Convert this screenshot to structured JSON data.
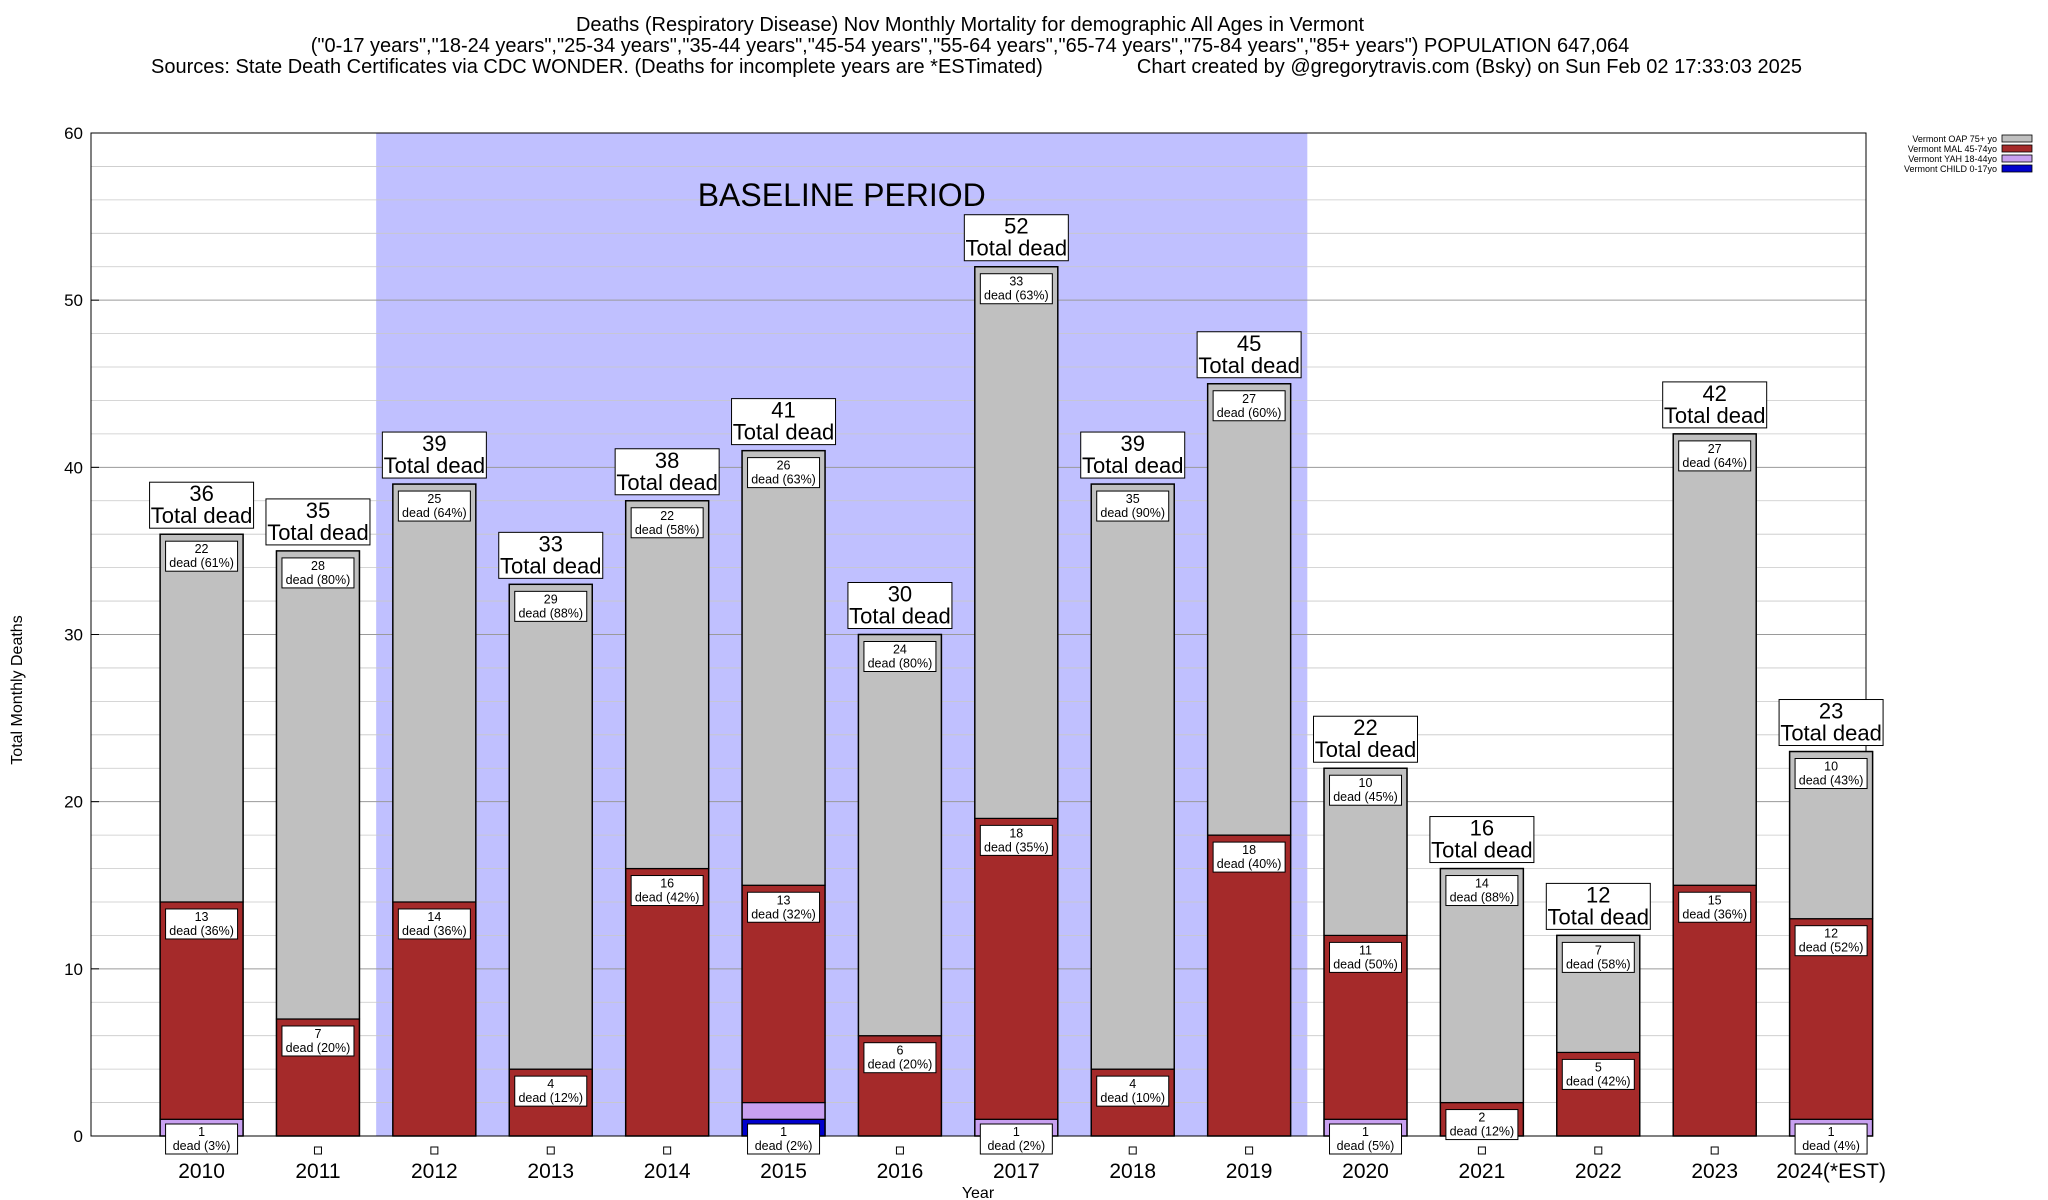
{
  "header": {
    "title_line1": "Deaths (Respiratory Disease) Nov Monthly Mortality for demographic All Ages in Vermont",
    "title_line2": "(\"0-17 years\",\"18-24 years\",\"25-34 years\",\"35-44 years\",\"45-54 years\",\"55-64 years\",\"65-74 years\",\"75-84 years\",\"85+ years\") POPULATION 647,064",
    "title_line3_left": "Sources: State Death Certificates via CDC WONDER. (Deaths for incomplete years are *ESTimated)",
    "title_line3_right": "Chart created by @gregorytravis.com (Bsky) on Sun Feb 02 17:33:03 2025"
  },
  "chart_data": {
    "type": "bar",
    "stacked": true,
    "xlabel": "Year",
    "ylabel": "Total Monthly Deaths",
    "ylim": [
      0,
      60
    ],
    "yticks": [
      0,
      10,
      20,
      30,
      40,
      50,
      60
    ],
    "grid": true,
    "legend_placement": "top-right",
    "categories": [
      "2010",
      "2011",
      "2012",
      "2013",
      "2014",
      "2015",
      "2016",
      "2017",
      "2018",
      "2019",
      "2020",
      "2021",
      "2022",
      "2023",
      "2024(*EST)"
    ],
    "series": [
      {
        "name": "Vermont CHILD 0-17yo",
        "color": "#0000cc",
        "values": [
          0,
          0,
          0,
          0,
          0,
          1,
          0,
          0,
          0,
          0,
          0,
          0,
          0,
          0,
          0
        ]
      },
      {
        "name": "Vermont YAH 18-44yo",
        "color": "#c8a0f0",
        "values": [
          1,
          0,
          0,
          0,
          0,
          1,
          0,
          1,
          0,
          0,
          1,
          0,
          0,
          0,
          1
        ]
      },
      {
        "name": "Vermont MAL 45-74yo",
        "color": "#a52a2a",
        "values": [
          13,
          7,
          14,
          4,
          16,
          13,
          6,
          18,
          4,
          18,
          11,
          2,
          5,
          15,
          12
        ]
      },
      {
        "name": "Vermont OAP 75+ yo",
        "color": "#c0c0c0",
        "values": [
          22,
          28,
          25,
          29,
          22,
          26,
          24,
          33,
          35,
          27,
          10,
          14,
          7,
          27,
          10
        ]
      }
    ],
    "totals": [
      36,
      35,
      39,
      33,
      38,
      41,
      30,
      52,
      39,
      45,
      22,
      16,
      12,
      42,
      23
    ],
    "total_label": "Total dead",
    "segment_labels": {
      "oap": [
        "22|dead (61%)",
        "28|dead (80%)",
        "25|dead (64%)",
        "29|dead (88%)",
        "22|dead (58%)",
        "26|dead (63%)",
        "24|dead (80%)",
        "33|dead (63%)",
        "35|dead (90%)",
        "27|dead (60%)",
        "10|dead (45%)",
        "14|dead (88%)",
        "7|dead (58%)",
        "27|dead (64%)",
        "10|dead (43%)"
      ],
      "mal": [
        "13|dead (36%)",
        "7|dead (20%)",
        "14|dead (36%)",
        "4|dead (12%)",
        "16|dead (42%)",
        "13|dead (32%)",
        "6|dead (20%)",
        "18|dead (35%)",
        "4|dead (10%)",
        "18|dead (40%)",
        "11|dead (50%)",
        "2|dead (12%)",
        "5|dead (42%)",
        "15|dead (36%)",
        "12|dead (52%)"
      ],
      "yah": [
        "1|dead (3%)",
        "",
        "",
        "",
        "",
        "1|dead (2%)",
        "",
        "1|dead (2%)",
        "",
        "",
        "1|dead (5%)",
        "",
        "",
        "",
        "1|dead (4%)"
      ]
    },
    "baseline": {
      "label": "BASELINE PERIOD",
      "from": "2012",
      "to": "2019",
      "color": "#c0c0ff"
    },
    "legend": [
      {
        "label": "Vermont OAP 75+ yo",
        "color": "#c0c0c0"
      },
      {
        "label": "Vermont MAL 45-74yo",
        "color": "#a52a2a"
      },
      {
        "label": "Vermont YAH 18-44yo",
        "color": "#c8a0f0"
      },
      {
        "label": "Vermont CHILD 0-17yo",
        "color": "#0000cc"
      }
    ]
  }
}
